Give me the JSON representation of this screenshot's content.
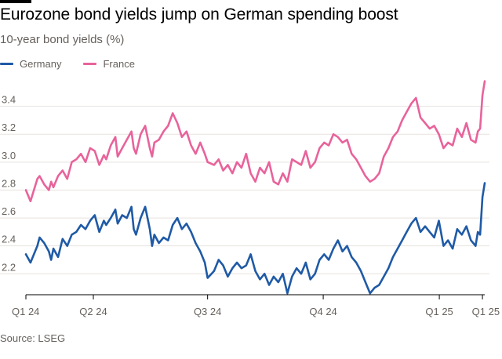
{
  "title": "Eurozone bond yields jump on German spending boost",
  "subtitle": "10-year bond yields (%)",
  "source": "Source: LSEG",
  "colors": {
    "germany": "#1f5aa6",
    "france": "#e8639b",
    "grid": "#e7e2de",
    "axis": "#000000"
  },
  "chart_data": {
    "type": "line",
    "ylabel": "10-year bond yields (%)",
    "ylim": [
      2.05,
      3.6
    ],
    "yticks": [
      2.2,
      2.4,
      2.6,
      2.8,
      3.0,
      3.2,
      3.4
    ],
    "ytick_labels": [
      "2.2",
      "2.4",
      "2.6",
      "2.8",
      "3.0",
      "3.2",
      "3.4"
    ],
    "xlim": [
      0,
      1.0
    ],
    "xticks": [
      {
        "label": "Q1 24",
        "x": 0.0
      },
      {
        "label": "Q2 24",
        "x": 0.147
      },
      {
        "label": "Q3 24",
        "x": 0.396
      },
      {
        "label": "Q4 24",
        "x": 0.648
      },
      {
        "label": "Q1 25",
        "x": 0.901
      },
      {
        "label": "Q1 25",
        "x": 0.995
      }
    ],
    "legend": [
      {
        "name": "Germany",
        "color": "#1f5aa6"
      },
      {
        "name": "France",
        "color": "#e8639b"
      }
    ],
    "series": [
      {
        "name": "Germany",
        "color": "#1f5aa6",
        "x": [
          0.0,
          0.01,
          0.025,
          0.03,
          0.04,
          0.05,
          0.055,
          0.06,
          0.07,
          0.08,
          0.09,
          0.1,
          0.11,
          0.12,
          0.13,
          0.14,
          0.15,
          0.16,
          0.17,
          0.175,
          0.185,
          0.195,
          0.2,
          0.21,
          0.22,
          0.23,
          0.235,
          0.24,
          0.25,
          0.26,
          0.27,
          0.275,
          0.28,
          0.29,
          0.3,
          0.31,
          0.32,
          0.33,
          0.34,
          0.35,
          0.36,
          0.37,
          0.38,
          0.39,
          0.396,
          0.41,
          0.42,
          0.43,
          0.44,
          0.45,
          0.46,
          0.47,
          0.48,
          0.49,
          0.5,
          0.51,
          0.52,
          0.53,
          0.54,
          0.55,
          0.56,
          0.57,
          0.58,
          0.59,
          0.6,
          0.61,
          0.62,
          0.63,
          0.64,
          0.65,
          0.66,
          0.67,
          0.68,
          0.69,
          0.7,
          0.71,
          0.72,
          0.73,
          0.74,
          0.75,
          0.76,
          0.77,
          0.78,
          0.79,
          0.8,
          0.81,
          0.82,
          0.83,
          0.84,
          0.85,
          0.86,
          0.87,
          0.88,
          0.89,
          0.9,
          0.91,
          0.92,
          0.93,
          0.94,
          0.95,
          0.96,
          0.97,
          0.98,
          0.985,
          0.99,
          0.995,
          1.0
        ],
        "values": [
          2.34,
          2.28,
          2.4,
          2.46,
          2.42,
          2.36,
          2.3,
          2.38,
          2.32,
          2.45,
          2.4,
          2.48,
          2.5,
          2.55,
          2.52,
          2.58,
          2.62,
          2.5,
          2.58,
          2.55,
          2.6,
          2.66,
          2.56,
          2.62,
          2.6,
          2.68,
          2.52,
          2.48,
          2.6,
          2.68,
          2.52,
          2.4,
          2.48,
          2.42,
          2.46,
          2.44,
          2.55,
          2.6,
          2.52,
          2.56,
          2.5,
          2.42,
          2.36,
          2.28,
          2.17,
          2.22,
          2.3,
          2.26,
          2.18,
          2.24,
          2.28,
          2.24,
          2.26,
          2.34,
          2.22,
          2.16,
          2.2,
          2.12,
          2.18,
          2.14,
          2.2,
          2.06,
          2.18,
          2.24,
          2.2,
          2.28,
          2.16,
          2.2,
          2.3,
          2.34,
          2.3,
          2.38,
          2.44,
          2.36,
          2.4,
          2.32,
          2.28,
          2.22,
          2.14,
          2.06,
          2.1,
          2.12,
          2.18,
          2.24,
          2.32,
          2.38,
          2.44,
          2.5,
          2.56,
          2.6,
          2.5,
          2.54,
          2.5,
          2.46,
          2.58,
          2.4,
          2.44,
          2.38,
          2.52,
          2.48,
          2.54,
          2.44,
          2.4,
          2.5,
          2.48,
          2.75,
          2.85
        ]
      },
      {
        "name": "France",
        "color": "#e8639b",
        "x": [
          0.0,
          0.01,
          0.025,
          0.03,
          0.04,
          0.05,
          0.055,
          0.06,
          0.07,
          0.08,
          0.09,
          0.1,
          0.11,
          0.12,
          0.13,
          0.14,
          0.15,
          0.16,
          0.17,
          0.175,
          0.185,
          0.195,
          0.2,
          0.21,
          0.22,
          0.23,
          0.235,
          0.24,
          0.25,
          0.26,
          0.27,
          0.275,
          0.28,
          0.29,
          0.3,
          0.31,
          0.32,
          0.33,
          0.34,
          0.35,
          0.36,
          0.37,
          0.38,
          0.39,
          0.396,
          0.41,
          0.42,
          0.43,
          0.44,
          0.45,
          0.46,
          0.47,
          0.48,
          0.49,
          0.5,
          0.51,
          0.52,
          0.53,
          0.54,
          0.55,
          0.56,
          0.57,
          0.58,
          0.59,
          0.6,
          0.61,
          0.62,
          0.63,
          0.64,
          0.65,
          0.66,
          0.67,
          0.68,
          0.69,
          0.7,
          0.71,
          0.72,
          0.73,
          0.74,
          0.75,
          0.76,
          0.77,
          0.78,
          0.79,
          0.8,
          0.81,
          0.82,
          0.83,
          0.84,
          0.85,
          0.86,
          0.87,
          0.88,
          0.89,
          0.9,
          0.91,
          0.92,
          0.93,
          0.94,
          0.95,
          0.96,
          0.97,
          0.98,
          0.985,
          0.99,
          0.995,
          1.0
        ],
        "values": [
          2.8,
          2.72,
          2.88,
          2.9,
          2.84,
          2.8,
          2.86,
          2.82,
          2.9,
          2.94,
          2.88,
          3.0,
          3.02,
          3.06,
          3.0,
          3.1,
          3.08,
          2.98,
          3.05,
          3.02,
          3.12,
          3.18,
          3.04,
          3.1,
          3.16,
          3.22,
          3.1,
          3.06,
          3.2,
          3.26,
          3.1,
          3.04,
          3.14,
          3.16,
          3.22,
          3.26,
          3.35,
          3.28,
          3.18,
          3.22,
          3.12,
          3.06,
          3.14,
          3.06,
          3.0,
          2.98,
          3.02,
          2.94,
          2.98,
          2.92,
          3.0,
          2.96,
          3.06,
          2.92,
          2.86,
          2.96,
          2.92,
          3.0,
          2.86,
          2.84,
          2.92,
          2.86,
          3.02,
          3.0,
          2.98,
          3.08,
          2.96,
          3.0,
          3.1,
          3.14,
          3.12,
          3.2,
          3.18,
          3.14,
          3.16,
          3.06,
          3.02,
          2.96,
          2.9,
          2.86,
          2.88,
          2.92,
          3.04,
          3.1,
          3.18,
          3.22,
          3.3,
          3.36,
          3.42,
          3.46,
          3.32,
          3.28,
          3.24,
          3.26,
          3.2,
          3.1,
          3.14,
          3.12,
          3.24,
          3.18,
          3.28,
          3.16,
          3.14,
          3.22,
          3.24,
          3.48,
          3.58
        ]
      }
    ]
  }
}
